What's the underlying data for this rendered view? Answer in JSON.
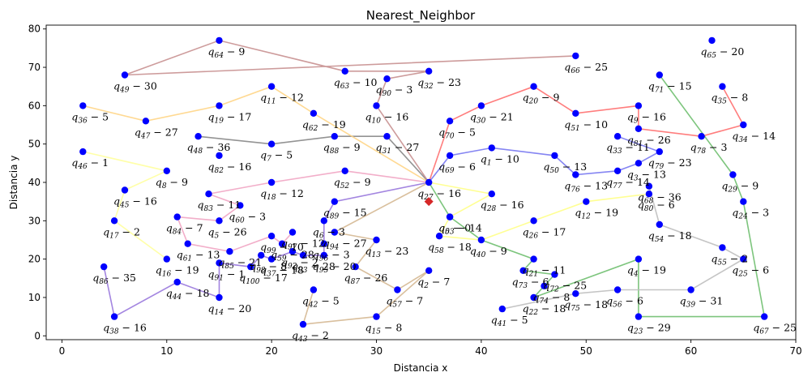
{
  "chart_data": {
    "type": "scatter",
    "title": "Nearest_Neighbor",
    "xlabel": "Distancia x",
    "ylabel": "Distancia y",
    "xlim": [
      -1.5,
      70
    ],
    "ylim": [
      -1,
      81
    ],
    "xticks": [
      0,
      10,
      20,
      30,
      40,
      50,
      60,
      70
    ],
    "yticks": [
      0,
      10,
      20,
      30,
      40,
      50,
      60,
      70,
      80
    ],
    "grid": false,
    "point_color": "#0000ff",
    "depot_color": "#d62728",
    "depot": {
      "x": 35,
      "y": 35
    },
    "points": [
      {
        "name": "q_{0}",
        "w": "0",
        "x": 37,
        "y": 31
      },
      {
        "name": "q_{1}",
        "w": "10",
        "x": 41,
        "y": 49
      },
      {
        "name": "q_{2}",
        "w": "7",
        "x": 35,
        "y": 17
      },
      {
        "name": "q_{3}",
        "w": "13",
        "x": 55,
        "y": 45
      },
      {
        "name": "q_{4}",
        "w": "19",
        "x": 55,
        "y": 20
      },
      {
        "name": "q_{5}",
        "w": "26",
        "x": 15,
        "y": 30
      },
      {
        "name": "q_{6}",
        "w": "3",
        "x": 25,
        "y": 30
      },
      {
        "name": "q_{7}",
        "w": "5",
        "x": 20,
        "y": 50
      },
      {
        "name": "q_{8}",
        "w": "9",
        "x": 10,
        "y": 43
      },
      {
        "name": "q_{9}",
        "w": "16",
        "x": 55,
        "y": 60
      },
      {
        "name": "q_{10}",
        "w": "16",
        "x": 30,
        "y": 60
      },
      {
        "name": "q_{11}",
        "w": "12",
        "x": 20,
        "y": 65
      },
      {
        "name": "q_{12}",
        "w": "19",
        "x": 50,
        "y": 35
      },
      {
        "name": "q_{13}",
        "w": "23",
        "x": 30,
        "y": 25
      },
      {
        "name": "q_{14}",
        "w": "20",
        "x": 15,
        "y": 10
      },
      {
        "name": "q_{15}",
        "w": "8",
        "x": 30,
        "y": 5
      },
      {
        "name": "q_{16}",
        "w": "19",
        "x": 10,
        "y": 20
      },
      {
        "name": "q_{17}",
        "w": "2",
        "x": 5,
        "y": 30
      },
      {
        "name": "q_{18}",
        "w": "12",
        "x": 20,
        "y": 40
      },
      {
        "name": "q_{19}",
        "w": "17",
        "x": 15,
        "y": 60
      },
      {
        "name": "q_{20}",
        "w": "9",
        "x": 45,
        "y": 65
      },
      {
        "name": "q_{21}",
        "w": "11",
        "x": 45,
        "y": 20
      },
      {
        "name": "q_{22}",
        "w": "18",
        "x": 45,
        "y": 10
      },
      {
        "name": "q_{23}",
        "w": "29",
        "x": 55,
        "y": 5
      },
      {
        "name": "q_{24}",
        "w": "3",
        "x": 65,
        "y": 35
      },
      {
        "name": "q_{25}",
        "w": "6",
        "x": 65,
        "y": 20
      },
      {
        "name": "q_{26}",
        "w": "17",
        "x": 45,
        "y": 30
      },
      {
        "name": "q_{27}",
        "w": "16",
        "x": 35,
        "y": 40
      },
      {
        "name": "q_{28}",
        "w": "16",
        "x": 41,
        "y": 37
      },
      {
        "name": "q_{29}",
        "w": "9",
        "x": 64,
        "y": 42
      },
      {
        "name": "q_{30}",
        "w": "21",
        "x": 40,
        "y": 60
      },
      {
        "name": "q_{31}",
        "w": "27",
        "x": 31,
        "y": 52
      },
      {
        "name": "q_{32}",
        "w": "23",
        "x": 35,
        "y": 69
      },
      {
        "name": "q_{33}",
        "w": "11",
        "x": 53,
        "y": 52
      },
      {
        "name": "q_{34}",
        "w": "14",
        "x": 65,
        "y": 55
      },
      {
        "name": "q_{35}",
        "w": "8",
        "x": 63,
        "y": 65
      },
      {
        "name": "q_{36}",
        "w": "5",
        "x": 2,
        "y": 60
      },
      {
        "name": "q_{37}",
        "w": "18",
        "x": 20,
        "y": 20
      },
      {
        "name": "q_{38}",
        "w": "16",
        "x": 5,
        "y": 5
      },
      {
        "name": "q_{39}",
        "w": "31",
        "x": 60,
        "y": 12
      },
      {
        "name": "q_{40}",
        "w": "9",
        "x": 40,
        "y": 25
      },
      {
        "name": "q_{41}",
        "w": "5",
        "x": 42,
        "y": 7
      },
      {
        "name": "q_{42}",
        "w": "5",
        "x": 24,
        "y": 12
      },
      {
        "name": "q_{43}",
        "w": "2",
        "x": 23,
        "y": 3
      },
      {
        "name": "q_{44}",
        "w": "18",
        "x": 11,
        "y": 14
      },
      {
        "name": "q_{45}",
        "w": "16",
        "x": 6,
        "y": 38
      },
      {
        "name": "q_{46}",
        "w": "1",
        "x": 2,
        "y": 48
      },
      {
        "name": "q_{47}",
        "w": "27",
        "x": 8,
        "y": 56
      },
      {
        "name": "q_{48}",
        "w": "36",
        "x": 13,
        "y": 52
      },
      {
        "name": "q_{49}",
        "w": "30",
        "x": 6,
        "y": 68
      },
      {
        "name": "q_{50}",
        "w": "13",
        "x": 47,
        "y": 47
      },
      {
        "name": "q_{51}",
        "w": "10",
        "x": 49,
        "y": 58
      },
      {
        "name": "q_{52}",
        "w": "9",
        "x": 27,
        "y": 43
      },
      {
        "name": "q_{53}",
        "w": "14",
        "x": 37,
        "y": 31
      },
      {
        "name": "q_{54}",
        "w": "18",
        "x": 57,
        "y": 29
      },
      {
        "name": "q_{55}",
        "w": "2",
        "x": 63,
        "y": 23
      },
      {
        "name": "q_{56}",
        "w": "6",
        "x": 53,
        "y": 12
      },
      {
        "name": "q_{57}",
        "w": "7",
        "x": 32,
        "y": 12
      },
      {
        "name": "q_{58}",
        "w": "18",
        "x": 36,
        "y": 26
      },
      {
        "name": "q_{59}",
        "w": "28",
        "x": 21,
        "y": 24
      },
      {
        "name": "q_{60}",
        "w": "3",
        "x": 17,
        "y": 34
      },
      {
        "name": "q_{61}",
        "w": "13",
        "x": 12,
        "y": 24
      },
      {
        "name": "q_{62}",
        "w": "19",
        "x": 24,
        "y": 58
      },
      {
        "name": "q_{63}",
        "w": "10",
        "x": 27,
        "y": 69
      },
      {
        "name": "q_{64}",
        "w": "9",
        "x": 15,
        "y": 77
      },
      {
        "name": "q_{65}",
        "w": "20",
        "x": 62,
        "y": 77
      },
      {
        "name": "q_{66}",
        "w": "25",
        "x": 49,
        "y": 73
      },
      {
        "name": "q_{67}",
        "w": "25",
        "x": 67,
        "y": 5
      },
      {
        "name": "q_{68}",
        "w": "36",
        "x": 56,
        "y": 39
      },
      {
        "name": "q_{69}",
        "w": "6",
        "x": 37,
        "y": 47
      },
      {
        "name": "q_{70}",
        "w": "5",
        "x": 37,
        "y": 56
      },
      {
        "name": "q_{71}",
        "w": "15",
        "x": 57,
        "y": 68
      },
      {
        "name": "q_{72}",
        "w": "25",
        "x": 47,
        "y": 16
      },
      {
        "name": "q_{73}",
        "w": "6",
        "x": 44,
        "y": 17
      },
      {
        "name": "q_{74}",
        "w": "8",
        "x": 46,
        "y": 13
      },
      {
        "name": "q_{75}",
        "w": "18",
        "x": 49,
        "y": 11
      },
      {
        "name": "q_{76}",
        "w": "13",
        "x": 49,
        "y": 42
      },
      {
        "name": "q_{77}",
        "w": "14",
        "x": 53,
        "y": 43
      },
      {
        "name": "q_{78}",
        "w": "3",
        "x": 61,
        "y": 52
      },
      {
        "name": "q_{79}",
        "w": "23",
        "x": 57,
        "y": 48
      },
      {
        "name": "q_{80}",
        "w": "6",
        "x": 56,
        "y": 37
      },
      {
        "name": "q_{81}",
        "w": "26",
        "x": 55,
        "y": 54
      },
      {
        "name": "q_{82}",
        "w": "16",
        "x": 15,
        "y": 47
      },
      {
        "name": "q_{83}",
        "w": "11",
        "x": 14,
        "y": 37
      },
      {
        "name": "q_{84}",
        "w": "7",
        "x": 11,
        "y": 31
      },
      {
        "name": "q_{85}",
        "w": "21",
        "x": 16,
        "y": 22
      },
      {
        "name": "q_{86}",
        "w": "35",
        "x": 4,
        "y": 18
      },
      {
        "name": "q_{87}",
        "w": "26",
        "x": 28,
        "y": 18
      },
      {
        "name": "q_{88}",
        "w": "9",
        "x": 26,
        "y": 52
      },
      {
        "name": "q_{89}",
        "w": "15",
        "x": 26,
        "y": 35
      },
      {
        "name": "q_{90}",
        "w": "3",
        "x": 31,
        "y": 67
      },
      {
        "name": "q_{91}",
        "w": "1",
        "x": 15,
        "y": 19
      },
      {
        "name": "q_{92}",
        "w": "2",
        "x": 22,
        "y": 22
      },
      {
        "name": "q_{93}",
        "w": "28",
        "x": 23,
        "y": 21
      },
      {
        "name": "q_{94}",
        "w": "27",
        "x": 26,
        "y": 27
      },
      {
        "name": "q_{95}",
        "w": "20",
        "x": 25,
        "y": 21
      },
      {
        "name": "q_{96}",
        "w": "3",
        "x": 25,
        "y": 24
      },
      {
        "name": "q_{97}",
        "w": "12",
        "x": 22,
        "y": 27
      },
      {
        "name": "q_{98}",
        "w": "8",
        "x": 19,
        "y": 21
      },
      {
        "name": "q_{99}",
        "w": "10",
        "x": 20,
        "y": 26
      },
      {
        "name": "q_{100}",
        "w": "17",
        "x": 18,
        "y": 18
      }
    ],
    "routes": [
      {
        "color": "#9370db",
        "stops": [
          "q_{27}",
          "q_{89}",
          "q_{6}",
          "q_{96}",
          "q_{95}",
          "q_{93}",
          "q_{92}",
          "q_{37}",
          "q_{98}",
          "q_{100}",
          "q_{91}",
          "q_{14}",
          "q_{44}",
          "q_{38}",
          "q_{86}"
        ]
      },
      {
        "color": "#f0a0c0",
        "stops": [
          "q_{27}",
          "q_{52}",
          "q_{18}",
          "q_{83}",
          "q_{60}",
          "q_{5}",
          "q_{84}",
          "q_{61}",
          "q_{85}",
          "q_{99}",
          "q_{59}",
          "q_{97}"
        ]
      },
      {
        "color": "#ffff80",
        "stops": [
          "q_{27}",
          "q_{28}",
          "q_{53}",
          "q_{58}",
          "q_{40}",
          "q_{26}",
          "q_{12}",
          "q_{80}"
        ]
      },
      {
        "color": "#d2b48c",
        "stops": [
          "q_{27}",
          "q_{94}",
          "q_{13}",
          "q_{87}",
          "q_{57}",
          "q_{2}",
          "q_{15}",
          "q_{43}",
          "q_{42}"
        ]
      },
      {
        "color": "#808080",
        "stops": [
          "q_{27}",
          "q_{31}",
          "q_{88}",
          "q_{7}",
          "q_{48}"
        ]
      },
      {
        "color": "#c48a8a",
        "stops": [
          "q_{27}",
          "q_{10}",
          "q_{90}",
          "q_{32}",
          "q_{63}",
          "q_{64}",
          "q_{49}",
          "q_{66}"
        ]
      },
      {
        "color": "#ffd27f",
        "stops": [
          "q_{27}",
          "q_{62}",
          "q_{11}",
          "q_{19}",
          "q_{47}",
          "q_{36}"
        ]
      },
      {
        "color": "#ff6666",
        "stops": [
          "q_{27}",
          "q_{70}",
          "q_{30}",
          "q_{20}",
          "q_{51}",
          "q_{9}",
          "q_{81}",
          "q_{78}",
          "q_{34}",
          "q_{35}"
        ]
      },
      {
        "color": "#7070f0",
        "stops": [
          "q_{27}",
          "q_{69}",
          "q_{1}",
          "q_{50}",
          "q_{76}",
          "q_{77}",
          "q_{3}",
          "q_{79}",
          "q_{33}"
        ]
      },
      {
        "color": "#66bb66",
        "stops": [
          "q_{27}",
          "q_{0}",
          "q_{40}",
          "q_{21}",
          "q_{73}",
          "q_{72}",
          "q_{74}",
          "q_{22}",
          "q_{4}",
          "q_{23}",
          "q_{67}",
          "q_{24}",
          "q_{29}",
          "q_{71}"
        ]
      },
      {
        "color": "#bbbbbb",
        "stops": [
          "q_{68}",
          "q_{54}",
          "q_{55}",
          "q_{25}",
          "q_{39}",
          "q_{56}",
          "q_{75}",
          "q_{41}"
        ]
      },
      {
        "color": "#ffff99",
        "stops": [
          "q_{46}",
          "q_{8}",
          "q_{45}",
          "q_{17}",
          "q_{16}"
        ]
      }
    ]
  }
}
